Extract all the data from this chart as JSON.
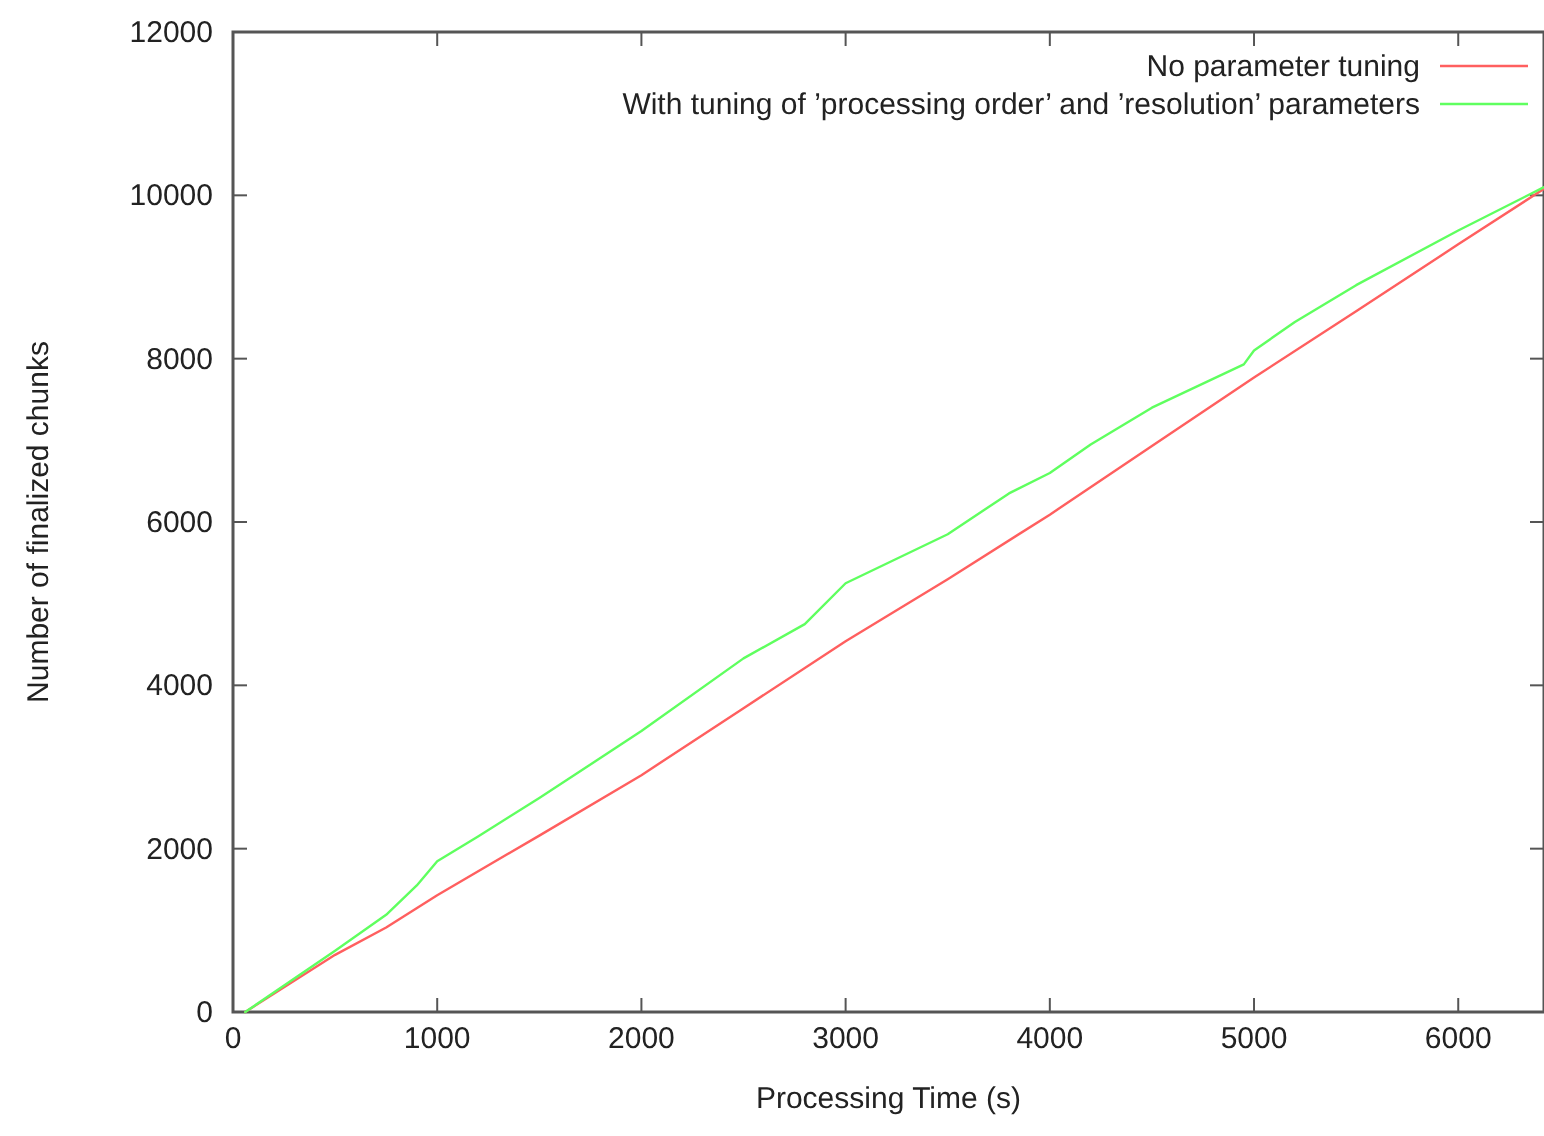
{
  "chart_data": {
    "type": "line",
    "xlabel": "Processing Time (s)",
    "ylabel": "Number of finalized chunks",
    "xlim": [
      0,
      6420
    ],
    "ylim": [
      0,
      12000
    ],
    "xticks": [
      0,
      1000,
      2000,
      3000,
      4000,
      5000,
      6000
    ],
    "yticks": [
      0,
      2000,
      4000,
      6000,
      8000,
      10000,
      12000
    ],
    "grid": false,
    "legend": "top right",
    "marker": "none",
    "line_style": "solid",
    "series": [
      {
        "name": "No parameter tuning",
        "color": "#ff5f5f",
        "x": [
          60,
          500,
          750,
          1000,
          1500,
          2000,
          2500,
          3000,
          3500,
          4000,
          4500,
          5000,
          5500,
          6000,
          6420
        ],
        "values": [
          0,
          700,
          1035,
          1430,
          2160,
          2900,
          3720,
          4540,
          5300,
          6090,
          6930,
          7770,
          8580,
          9400,
          10080
        ]
      },
      {
        "name": "With tuning of ’processing order’ and ’resolution’ parameters",
        "color": "#5fff5f",
        "x": [
          60,
          500,
          750,
          900,
          1000,
          1200,
          1500,
          2000,
          2500,
          2800,
          3000,
          3500,
          3800,
          4000,
          4200,
          4500,
          4950,
          5000,
          5200,
          5500,
          6000,
          6420
        ],
        "values": [
          0,
          750,
          1190,
          1550,
          1845,
          2150,
          2620,
          3440,
          4330,
          4750,
          5250,
          5850,
          6350,
          6600,
          6950,
          7400,
          7930,
          8100,
          8450,
          8900,
          9570,
          10100
        ]
      }
    ]
  }
}
